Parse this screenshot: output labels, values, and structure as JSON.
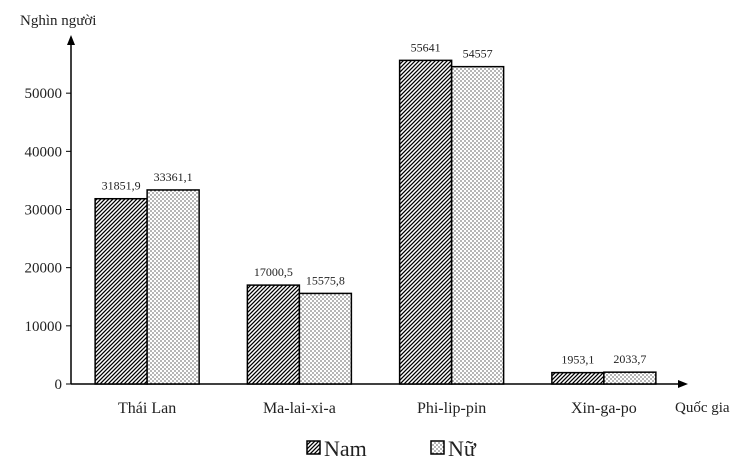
{
  "chart_data": {
    "type": "bar",
    "ylabel": "Nghìn người",
    "xlabel": "Quốc gia",
    "categories": [
      "Thái Lan",
      "Ma-lai-xi-a",
      "Phi-lip-pin",
      "Xin-ga-po"
    ],
    "series": [
      {
        "name": "Nam",
        "values": [
          31851.9,
          17000.5,
          55641,
          1953.1
        ],
        "labels": [
          "31851,9",
          "17000,5",
          "55641",
          "1953,1"
        ],
        "pattern": "diagonal-hatch",
        "color": "#000000"
      },
      {
        "name": "Nữ",
        "values": [
          33361.1,
          15575.8,
          54557,
          2033.7
        ],
        "labels": [
          "33361,1",
          "15575,8",
          "54557",
          "2033,7"
        ],
        "pattern": "dots",
        "color": "#000000"
      }
    ],
    "ylim": [
      0,
      60000
    ],
    "yticks": [
      0,
      10000,
      20000,
      30000,
      40000,
      50000
    ],
    "grid": false,
    "legend_position": "bottom-center"
  }
}
